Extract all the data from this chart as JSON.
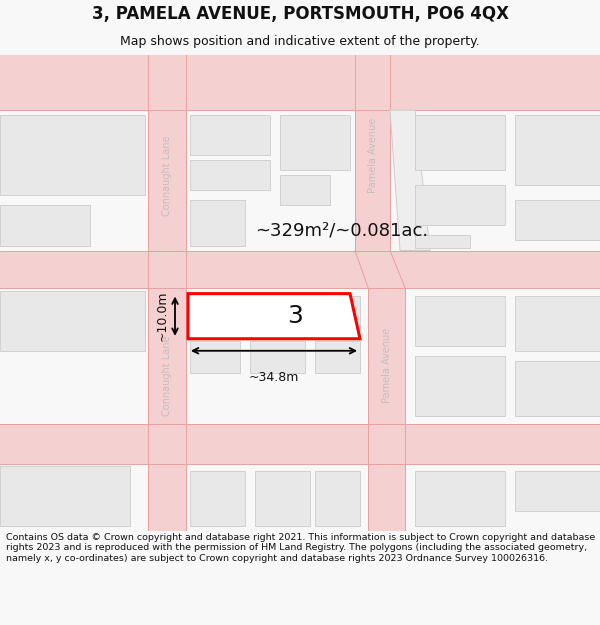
{
  "title": "3, PAMELA AVENUE, PORTSMOUTH, PO6 4QX",
  "subtitle": "Map shows position and indicative extent of the property.",
  "footer": "Contains OS data © Crown copyright and database right 2021. This information is subject to Crown copyright and database rights 2023 and is reproduced with the permission of HM Land Registry. The polygons (including the associated geometry, namely x, y co-ordinates) are subject to Crown copyright and database rights 2023 Ordnance Survey 100026316.",
  "bg_color": "#f8f8f8",
  "map_bg": "#ffffff",
  "road_fill": "#f5d0d0",
  "road_line": "#e8a0a0",
  "building_fill": "#e8e8e8",
  "building_edge": "#cccccc",
  "highlight_fill": "#ffffff",
  "highlight_edge": "#ff0000",
  "highlight_edge_width": 2.2,
  "street_text_color": "#c0c0c0",
  "area_text": "~329m²/~0.081ac.",
  "width_text": "~34.8m",
  "height_text": "~10.0m",
  "property_label": "3"
}
